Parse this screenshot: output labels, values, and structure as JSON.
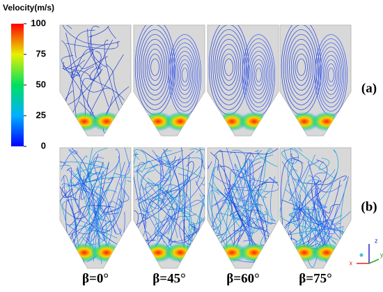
{
  "colorbar": {
    "title": "Velocity(m/s)",
    "range": [
      0,
      100
    ],
    "ticks": [
      0,
      25,
      50,
      75,
      100
    ]
  },
  "panel_labels": [
    "(a)",
    "(b)"
  ],
  "angle_labels": [
    "β=0°",
    "β=45°",
    "β=60°",
    "β=75°"
  ],
  "axes_triad": {
    "z": "z",
    "y": "y",
    "x": "x"
  }
}
